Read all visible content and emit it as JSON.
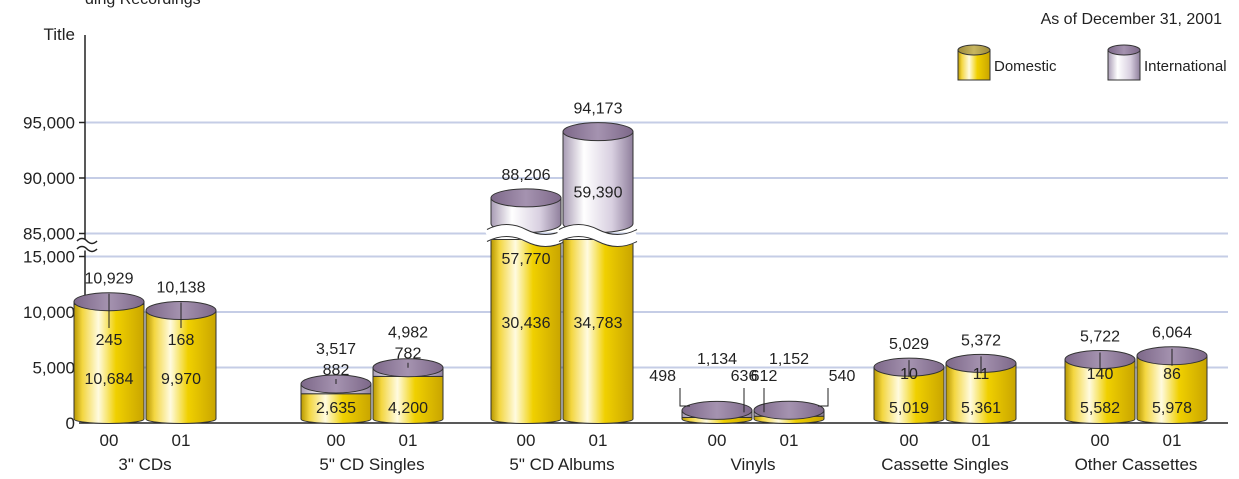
{
  "header": {
    "title_fragment": "ding Recordings",
    "date_note": "As of December 31, 2001"
  },
  "colors": {
    "domestic": "#e8c400",
    "international": "#c9bed4",
    "cap": "#8f7a99",
    "grid": "#c5cde6",
    "axis": "#222222"
  },
  "chart_data": {
    "type": "bar",
    "subtype": "stacked-cylinder-with-axis-break",
    "ylabel": "Title",
    "yticks": [
      "0",
      "5,000",
      "10,000",
      "15,000",
      "85,000",
      "90,000",
      "95,000"
    ],
    "ylim": [
      0,
      95000
    ],
    "axis_break": {
      "lower_max": 15000,
      "upper_min": 85000
    },
    "grid": true,
    "legend": {
      "placement": "top-right",
      "items": [
        "Domestic",
        "International"
      ]
    },
    "groups": [
      {
        "name": "3\" CDs",
        "bars": [
          {
            "year": "00",
            "domestic": 10684,
            "domestic_label": "10,684",
            "international": 245,
            "international_label": "245",
            "total": 10929,
            "total_label": "10,929"
          },
          {
            "year": "01",
            "domestic": 9970,
            "domestic_label": "9,970",
            "international": 168,
            "international_label": "168",
            "total": 10138,
            "total_label": "10,138"
          }
        ]
      },
      {
        "name": "5\" CD Singles",
        "bars": [
          {
            "year": "00",
            "domestic": 2635,
            "domestic_label": "2,635",
            "international": 882,
            "international_label": "882",
            "total": 3517,
            "total_label": "3,517"
          },
          {
            "year": "01",
            "domestic": 4200,
            "domestic_label": "4,200",
            "international": 782,
            "international_label": "782",
            "total": 4982,
            "total_label": "4,982"
          }
        ]
      },
      {
        "name": "5\" CD Albums",
        "bars": [
          {
            "year": "00",
            "domestic": 30436,
            "domestic_label": "30,436",
            "international": 57770,
            "international_label": "57,770",
            "total": 88206,
            "total_label": "88,206"
          },
          {
            "year": "01",
            "domestic": 34783,
            "domestic_label": "34,783",
            "international": 59390,
            "international_label": "59,390",
            "total": 94173,
            "total_label": "94,173"
          }
        ]
      },
      {
        "name": "Vinyls",
        "bars": [
          {
            "year": "00",
            "domestic": 498,
            "domestic_label": "498",
            "international": 636,
            "international_label": "636",
            "total": 1134,
            "total_label": "1,134"
          },
          {
            "year": "01",
            "domestic": 612,
            "domestic_label": "612",
            "international": 540,
            "international_label": "540",
            "total": 1152,
            "total_label": "1,152"
          }
        ]
      },
      {
        "name": "Cassette Singles",
        "bars": [
          {
            "year": "00",
            "domestic": 5019,
            "domestic_label": "5,019",
            "international": 10,
            "international_label": "10",
            "total": 5029,
            "total_label": "5,029"
          },
          {
            "year": "01",
            "domestic": 5361,
            "domestic_label": "5,361",
            "international": 11,
            "international_label": "11",
            "total": 5372,
            "total_label": "5,372"
          }
        ]
      },
      {
        "name": "Other Cassettes",
        "bars": [
          {
            "year": "00",
            "domestic": 5582,
            "domestic_label": "5,582",
            "international": 140,
            "international_label": "140",
            "total": 5722,
            "total_label": "5,722"
          },
          {
            "year": "01",
            "domestic": 5978,
            "domestic_label": "5,978",
            "international": 86,
            "international_label": "86",
            "total": 6064,
            "total_label": "6,064"
          }
        ]
      }
    ]
  }
}
